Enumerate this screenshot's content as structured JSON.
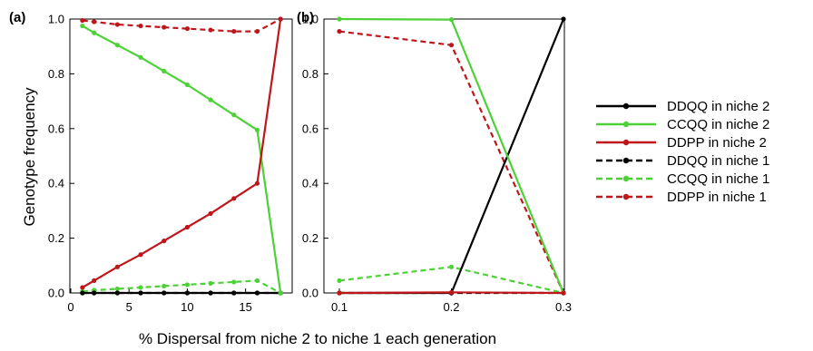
{
  "figure": {
    "ylabel": "Genotype frequency",
    "xlabel": "% Dispersal from niche 2 to niche 1 each generation"
  },
  "legend": {
    "entries": [
      {
        "label": "DDQQ in niche 2",
        "color": "#000000",
        "dashed": false
      },
      {
        "label": "CCQQ in niche 2",
        "color": "#4cd137",
        "dashed": false
      },
      {
        "label": "DDPP in niche 2",
        "color": "#c0161b",
        "dashed": false
      },
      {
        "label": "DDQQ in niche 1",
        "color": "#000000",
        "dashed": true
      },
      {
        "label": "CCQQ in niche 1",
        "color": "#4cd137",
        "dashed": true
      },
      {
        "label": "DDPP in niche 1",
        "color": "#c0161b",
        "dashed": true
      }
    ]
  },
  "chart_data": [
    {
      "type": "line",
      "panel_label": "(a)",
      "x": [
        1,
        2,
        4,
        6,
        8,
        10,
        12,
        14,
        16,
        18
      ],
      "xticks": [
        "0",
        "5",
        "10",
        "15"
      ],
      "xlim": [
        0,
        19
      ],
      "yticks": [
        "0.0",
        "0.2",
        "0.4",
        "0.6",
        "0.8",
        "1.0"
      ],
      "ylim": [
        0,
        1
      ],
      "grid": false,
      "series": [
        {
          "name": "DDQQ in niche 2",
          "color": "#000000",
          "dashed": false,
          "values": [
            0,
            0,
            0,
            0,
            0,
            0,
            0,
            0,
            0,
            0
          ]
        },
        {
          "name": "CCQQ in niche 2",
          "color": "#4cd137",
          "dashed": false,
          "values": [
            0.975,
            0.95,
            0.905,
            0.86,
            0.81,
            0.76,
            0.705,
            0.65,
            0.595,
            0
          ]
        },
        {
          "name": "DDPP in niche 2",
          "color": "#c0161b",
          "dashed": false,
          "values": [
            0.02,
            0.045,
            0.095,
            0.14,
            0.19,
            0.24,
            0.29,
            0.345,
            0.4,
            1.0
          ]
        },
        {
          "name": "DDQQ in niche 1",
          "color": "#000000",
          "dashed": true,
          "values": [
            0,
            0,
            0,
            0,
            0,
            0,
            0,
            0,
            0,
            0
          ]
        },
        {
          "name": "CCQQ in niche 1",
          "color": "#4cd137",
          "dashed": true,
          "values": [
            0.005,
            0.01,
            0.015,
            0.02,
            0.025,
            0.03,
            0.035,
            0.04,
            0.045,
            0
          ]
        },
        {
          "name": "DDPP in niche 1",
          "color": "#c0161b",
          "dashed": true,
          "values": [
            0.995,
            0.99,
            0.98,
            0.975,
            0.97,
            0.965,
            0.96,
            0.955,
            0.955,
            1.0
          ]
        }
      ]
    },
    {
      "type": "line",
      "panel_label": "(b)",
      "x": [
        0.1,
        0.2,
        0.3
      ],
      "xticks": [
        "0.1",
        "0.2",
        "0.3"
      ],
      "xlim": [
        0.1,
        0.3
      ],
      "yticks": [
        "0.0",
        "0.2",
        "0.4",
        "0.6",
        "0.8",
        "1.0"
      ],
      "ylim": [
        0,
        1
      ],
      "grid": false,
      "series": [
        {
          "name": "DDQQ in niche 2",
          "color": "#000000",
          "dashed": false,
          "values": [
            0,
            0,
            1.0
          ]
        },
        {
          "name": "CCQQ in niche 2",
          "color": "#4cd137",
          "dashed": false,
          "values": [
            1.0,
            0.998,
            0
          ]
        },
        {
          "name": "DDPP in niche 2",
          "color": "#c0161b",
          "dashed": false,
          "values": [
            0,
            0.002,
            0
          ]
        },
        {
          "name": "DDQQ in niche 1",
          "color": "#000000",
          "dashed": true,
          "values": [
            0,
            0,
            0
          ]
        },
        {
          "name": "CCQQ in niche 1",
          "color": "#4cd137",
          "dashed": true,
          "values": [
            0.045,
            0.095,
            0
          ]
        },
        {
          "name": "DDPP in niche 1",
          "color": "#c0161b",
          "dashed": true,
          "values": [
            0.955,
            0.905,
            0
          ]
        }
      ]
    }
  ]
}
